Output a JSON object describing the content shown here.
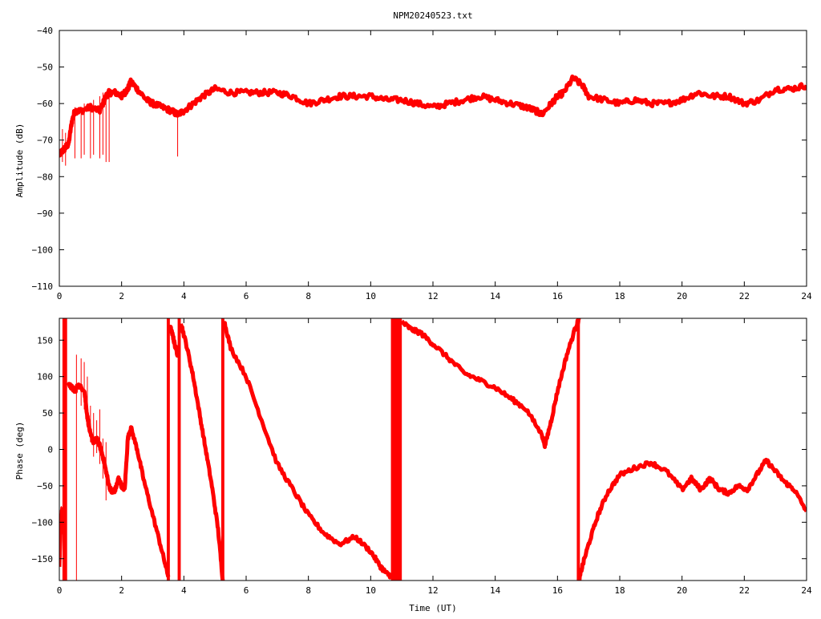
{
  "title": "NPM20240523.txt",
  "colors": {
    "trace": "#ff0000",
    "axes": "#000000",
    "background": "#ffffff"
  },
  "chart_data": [
    {
      "type": "line",
      "title": "NPM20240523.txt",
      "xlabel": "",
      "ylabel": "Amplitude (dB)",
      "xlim": [
        0,
        24
      ],
      "ylim": [
        -110,
        -40
      ],
      "xticks": [
        0,
        2,
        4,
        6,
        8,
        10,
        12,
        14,
        16,
        18,
        20,
        22,
        24
      ],
      "xtick_labels": [
        "0",
        "2",
        "4",
        "6",
        "8",
        "10",
        "12",
        "14",
        "16",
        "18",
        "20",
        "22",
        "24"
      ],
      "yticks": [
        -110,
        -100,
        -90,
        -80,
        -70,
        -60,
        -50,
        -40
      ],
      "ytick_labels": [
        "−110",
        "−100",
        "−90",
        "−80",
        "−70",
        "−60",
        "−50",
        "−40"
      ],
      "grid": false,
      "series": [
        {
          "x": [
            0.0,
            0.1,
            0.2,
            0.3,
            0.4,
            0.5,
            0.7,
            1.0,
            1.3,
            1.5,
            1.6,
            1.8,
            2.0,
            2.1,
            2.2,
            2.3,
            2.5,
            2.8,
            3.0,
            3.3,
            3.6,
            3.8,
            4.0,
            4.3,
            4.6,
            5.0,
            5.5,
            6.0,
            6.5,
            7.0,
            7.5,
            8.0,
            8.5,
            9.0,
            9.5,
            10.0,
            10.5,
            11.0,
            11.5,
            12.0,
            12.5,
            13.0,
            13.5,
            14.0,
            14.5,
            15.0,
            15.3,
            15.5,
            15.8,
            16.0,
            16.2,
            16.5,
            16.8,
            17.0,
            17.5,
            18.0,
            18.5,
            19.0,
            19.5,
            20.0,
            20.5,
            21.0,
            21.5,
            22.0,
            22.5,
            23.0,
            23.5,
            24.0
          ],
          "y": [
            -74,
            -73,
            -72,
            -71,
            -65,
            -62,
            -62,
            -61,
            -62,
            -58,
            -57,
            -57,
            -58,
            -57,
            -56,
            -54,
            -56,
            -59,
            -60,
            -61,
            -62,
            -63,
            -62,
            -60,
            -58,
            -56,
            -57,
            -57,
            -57,
            -57,
            -58,
            -60,
            -59,
            -58,
            -58,
            -58,
            -59,
            -59,
            -60,
            -61,
            -60,
            -59,
            -58,
            -59,
            -60,
            -61,
            -62,
            -63,
            -60,
            -58,
            -57,
            -53,
            -55,
            -58,
            -59,
            -60,
            -59,
            -60,
            -60,
            -59,
            -57,
            -58,
            -58,
            -60,
            -59,
            -56,
            -56,
            -55
          ]
        }
      ],
      "spikes": [
        {
          "x": 0.1,
          "y_min": -76,
          "y_max": -67
        },
        {
          "x": 0.2,
          "y_min": -77,
          "y_max": -68
        },
        {
          "x": 0.5,
          "y_min": -75,
          "y_max": -61
        },
        {
          "x": 0.7,
          "y_min": -75,
          "y_max": -61
        },
        {
          "x": 0.8,
          "y_min": -74,
          "y_max": -60
        },
        {
          "x": 1.0,
          "y_min": -75,
          "y_max": -60
        },
        {
          "x": 1.1,
          "y_min": -74,
          "y_max": -59
        },
        {
          "x": 1.3,
          "y_min": -75,
          "y_max": -58
        },
        {
          "x": 1.4,
          "y_min": -74,
          "y_max": -57
        },
        {
          "x": 1.5,
          "y_min": -76,
          "y_max": -57
        },
        {
          "x": 1.6,
          "y_min": -76,
          "y_max": -57
        },
        {
          "x": 3.8,
          "y_min": -74.5,
          "y_max": -63
        }
      ]
    },
    {
      "type": "line",
      "title": "",
      "xlabel": "Time (UT)",
      "ylabel": "Phase (deg)",
      "xlim": [
        0,
        24
      ],
      "ylim": [
        -180,
        180
      ],
      "xticks": [
        0,
        2,
        4,
        6,
        8,
        10,
        12,
        14,
        16,
        18,
        20,
        22,
        24
      ],
      "xtick_labels": [
        "0",
        "2",
        "4",
        "6",
        "8",
        "10",
        "12",
        "14",
        "16",
        "18",
        "20",
        "22",
        "24"
      ],
      "yticks": [
        -150,
        -100,
        -50,
        0,
        50,
        100,
        150
      ],
      "ytick_labels": [
        "−150",
        "−100",
        "−50",
        "0",
        "50",
        "100",
        "150"
      ],
      "grid": false,
      "segments": [
        {
          "x": [
            0.0,
            0.05,
            0.1
          ],
          "y": [
            -160,
            -100,
            -80
          ]
        },
        {
          "x": [
            0.3,
            0.4,
            0.5,
            0.6,
            0.8,
            0.9,
            1.0,
            1.1,
            1.2,
            1.3,
            1.4,
            1.5,
            1.6,
            1.7,
            1.8,
            1.9,
            2.0,
            2.1,
            2.2,
            2.3,
            2.5,
            2.7,
            3.0,
            3.3,
            3.5
          ],
          "y": [
            90,
            85,
            80,
            88,
            82,
            45,
            20,
            10,
            15,
            5,
            -10,
            -30,
            -50,
            -60,
            -55,
            -40,
            -50,
            -55,
            15,
            30,
            0,
            -40,
            -90,
            -140,
            -175
          ]
        },
        {
          "x": [
            3.55,
            3.65,
            3.7,
            3.8
          ],
          "y": [
            170,
            155,
            145,
            130
          ]
        },
        {
          "x": [
            3.9,
            4.1,
            4.3,
            4.5,
            4.7,
            4.9,
            5.1,
            5.25
          ],
          "y": [
            175,
            140,
            100,
            50,
            0,
            -50,
            -110,
            -180
          ]
        },
        {
          "x": [
            5.3,
            5.5,
            6.0,
            6.5,
            7.0,
            7.5,
            8.0,
            8.5,
            9.0,
            9.5,
            10.0,
            10.3,
            10.5,
            10.7
          ],
          "y": [
            175,
            140,
            100,
            40,
            -20,
            -55,
            -90,
            -115,
            -130,
            -120,
            -140,
            -160,
            -170,
            -175
          ]
        },
        {
          "x": [
            11.0,
            11.3,
            11.6,
            12.0,
            12.5,
            13.0,
            13.5,
            14.0,
            14.5,
            15.0,
            15.5,
            15.6,
            15.8,
            16.0,
            16.3,
            16.6,
            16.7
          ],
          "y": [
            175,
            165,
            160,
            145,
            125,
            105,
            95,
            85,
            70,
            55,
            20,
            5,
            40,
            80,
            130,
            170,
            180
          ]
        },
        {
          "x": [
            16.7,
            16.8,
            17.0,
            17.3,
            17.6,
            18.0,
            18.5,
            19.0,
            19.5,
            20.0,
            20.3,
            20.6,
            20.9,
            21.2,
            21.5,
            21.8,
            22.1,
            22.4,
            22.7,
            23.0,
            23.3,
            23.6,
            24.0
          ],
          "y": [
            -178,
            -160,
            -130,
            -90,
            -60,
            -35,
            -25,
            -18,
            -30,
            -55,
            -40,
            -55,
            -40,
            -55,
            -60,
            -50,
            -55,
            -35,
            -15,
            -30,
            -45,
            -55,
            -85
          ]
        }
      ],
      "fills": [
        {
          "x0": 0.1,
          "x1": 0.25,
          "y_min": -180,
          "y_max": 180
        },
        {
          "x0": 3.45,
          "x1": 3.55,
          "y_min": -180,
          "y_max": 180
        },
        {
          "x0": 3.8,
          "x1": 3.9,
          "y_min": -180,
          "y_max": 180
        },
        {
          "x0": 5.2,
          "x1": 5.3,
          "y_min": -180,
          "y_max": 180
        },
        {
          "x0": 10.65,
          "x1": 11.0,
          "y_min": -180,
          "y_max": 180
        },
        {
          "x0": 16.62,
          "x1": 16.72,
          "y_min": -180,
          "y_max": 180
        }
      ],
      "spikes": [
        {
          "x": 0.55,
          "y_min": -180,
          "y_max": 130
        },
        {
          "x": 0.7,
          "y_min": 60,
          "y_max": 125
        },
        {
          "x": 0.8,
          "y_min": 55,
          "y_max": 120
        },
        {
          "x": 0.9,
          "y_min": 30,
          "y_max": 100
        },
        {
          "x": 1.0,
          "y_min": 10,
          "y_max": 60
        },
        {
          "x": 1.1,
          "y_min": -10,
          "y_max": 50
        },
        {
          "x": 1.2,
          "y_min": -5,
          "y_max": 40
        },
        {
          "x": 1.3,
          "y_min": -20,
          "y_max": 55
        },
        {
          "x": 1.4,
          "y_min": -40,
          "y_max": 15
        },
        {
          "x": 1.5,
          "y_min": -70,
          "y_max": 10
        }
      ]
    }
  ]
}
